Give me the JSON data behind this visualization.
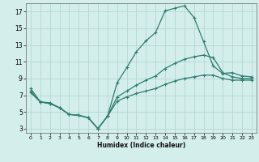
{
  "xlabel": "Humidex (Indice chaleur)",
  "bg_color": "#d4eeec",
  "grid_color": "#b2d8d4",
  "line_color": "#2e7d6e",
  "xlim": [
    -0.5,
    23.5
  ],
  "ylim": [
    2.5,
    18.0
  ],
  "xticks": [
    0,
    1,
    2,
    3,
    4,
    5,
    6,
    7,
    8,
    9,
    10,
    11,
    12,
    13,
    14,
    15,
    16,
    17,
    18,
    19,
    20,
    21,
    22,
    23
  ],
  "yticks": [
    3,
    5,
    7,
    9,
    11,
    13,
    15,
    17
  ],
  "curve1_x": [
    0,
    1,
    2,
    3,
    4,
    5,
    6,
    7,
    8,
    9,
    10,
    11,
    12,
    13,
    14,
    15,
    16,
    17,
    18,
    19,
    20,
    21,
    22,
    23
  ],
  "curve1_y": [
    7.8,
    6.2,
    6.1,
    5.5,
    4.7,
    4.6,
    4.3,
    3.0,
    4.5,
    8.5,
    10.3,
    12.2,
    13.5,
    14.5,
    17.1,
    17.4,
    17.7,
    16.3,
    13.4,
    10.5,
    9.6,
    9.7,
    9.3,
    9.2
  ],
  "curve2_x": [
    0,
    1,
    2,
    3,
    4,
    5,
    6,
    7,
    8,
    9,
    10,
    11,
    12,
    13,
    14,
    15,
    16,
    17,
    18,
    19,
    20,
    21,
    22,
    23
  ],
  "curve2_y": [
    7.5,
    6.2,
    6.0,
    5.5,
    4.7,
    4.6,
    4.3,
    3.0,
    4.5,
    6.8,
    7.5,
    8.2,
    8.8,
    9.3,
    10.2,
    10.8,
    11.3,
    11.6,
    11.8,
    11.5,
    9.7,
    9.2,
    9.0,
    9.0
  ],
  "curve3_x": [
    0,
    1,
    2,
    3,
    4,
    5,
    6,
    7,
    8,
    9,
    10,
    11,
    12,
    13,
    14,
    15,
    16,
    17,
    18,
    19,
    20,
    21,
    22,
    23
  ],
  "curve3_y": [
    7.3,
    6.2,
    6.0,
    5.5,
    4.7,
    4.6,
    4.3,
    3.0,
    4.5,
    6.3,
    6.8,
    7.2,
    7.5,
    7.8,
    8.3,
    8.7,
    9.0,
    9.2,
    9.4,
    9.4,
    9.0,
    8.8,
    8.8,
    8.8
  ]
}
